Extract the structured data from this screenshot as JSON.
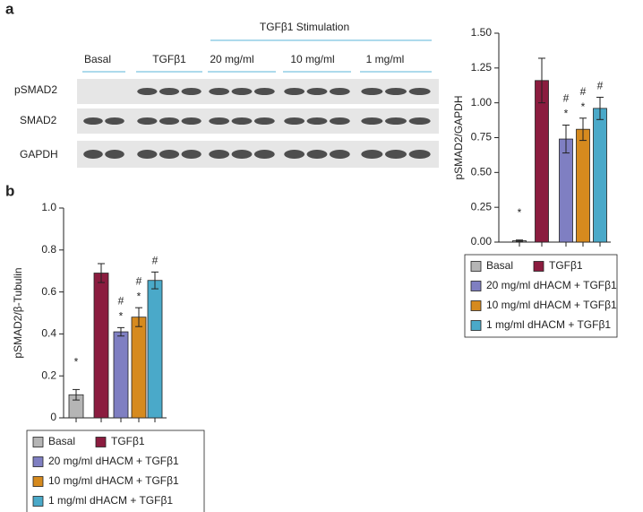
{
  "panel_labels": [
    "a",
    "b"
  ],
  "blot": {
    "header": "TGFβ1 Stimulation",
    "groups": [
      "Basal",
      "TGFβ1",
      "20 mg/ml",
      "10 mg/ml",
      "1 mg/ml"
    ],
    "rows": [
      "pSMAD2",
      "SMAD2",
      "GAPDH"
    ]
  },
  "chart_data": [
    {
      "type": "bar",
      "ylabel": "pSMAD2/GAPDH",
      "ylim": [
        0,
        1.5
      ],
      "yticks": [
        {
          "value": 0,
          "label": "0.00"
        },
        {
          "value": 0.25,
          "label": "0.25"
        },
        {
          "value": 0.5,
          "label": "0.50"
        },
        {
          "value": 0.75,
          "label": "0.75"
        },
        {
          "value": 1,
          "label": "1.00"
        },
        {
          "value": 1.25,
          "label": "1.25"
        },
        {
          "value": 1.5,
          "label": "1.50"
        }
      ],
      "series": [
        {
          "name": "Basal",
          "color": "#b5b5b5",
          "values": [
            0.01
          ],
          "errors": [
            0.005
          ],
          "marks": [
            "*"
          ]
        },
        {
          "name": "TGFβ1",
          "color": "#8b1c3f",
          "values": [
            1.16
          ],
          "errors": [
            0.16
          ]
        },
        {
          "name": "20 mg/ml dHACM + TGFβ1",
          "color": "#7f7fc2",
          "values": [
            0.74
          ],
          "errors": [
            0.1
          ],
          "marks": [
            "#",
            "*"
          ]
        },
        {
          "name": "10 mg/ml dHACM + TGFβ1",
          "color": "#d68a1e",
          "values": [
            0.81
          ],
          "errors": [
            0.08
          ],
          "marks": [
            "#",
            "*"
          ]
        },
        {
          "name": "1 mg/ml dHACM + TGFβ1",
          "color": "#4aa9c9",
          "values": [
            0.96
          ],
          "errors": [
            0.08
          ],
          "marks": [
            "#"
          ]
        }
      ]
    },
    {
      "type": "bar",
      "ylabel": "pSMAD2/β-Tubulin",
      "ylim": [
        0,
        1.0
      ],
      "yticks": [
        0,
        0.2,
        0.4,
        0.6,
        0.8,
        {
          "value": 1.0,
          "label": "1.0"
        }
      ],
      "series": [
        {
          "name": "Basal",
          "color": "#b5b5b5",
          "values": [
            0.11
          ],
          "errors": [
            0.025
          ],
          "marks": [
            "*"
          ]
        },
        {
          "name": "TGFβ1",
          "color": "#8b1c3f",
          "values": [
            0.69
          ],
          "errors": [
            0.045
          ]
        },
        {
          "name": "20 mg/ml dHACM + TGFβ1",
          "color": "#7f7fc2",
          "values": [
            0.41
          ],
          "errors": [
            0.02
          ],
          "marks": [
            "#",
            "*"
          ]
        },
        {
          "name": "10 mg/ml dHACM + TGFβ1",
          "color": "#d68a1e",
          "values": [
            0.48
          ],
          "errors": [
            0.045
          ],
          "marks": [
            "#",
            "*"
          ]
        },
        {
          "name": "1 mg/ml dHACM + TGFβ1",
          "color": "#4aa9c9",
          "values": [
            0.655
          ],
          "errors": [
            0.04
          ],
          "marks": [
            "#"
          ]
        }
      ]
    }
  ]
}
